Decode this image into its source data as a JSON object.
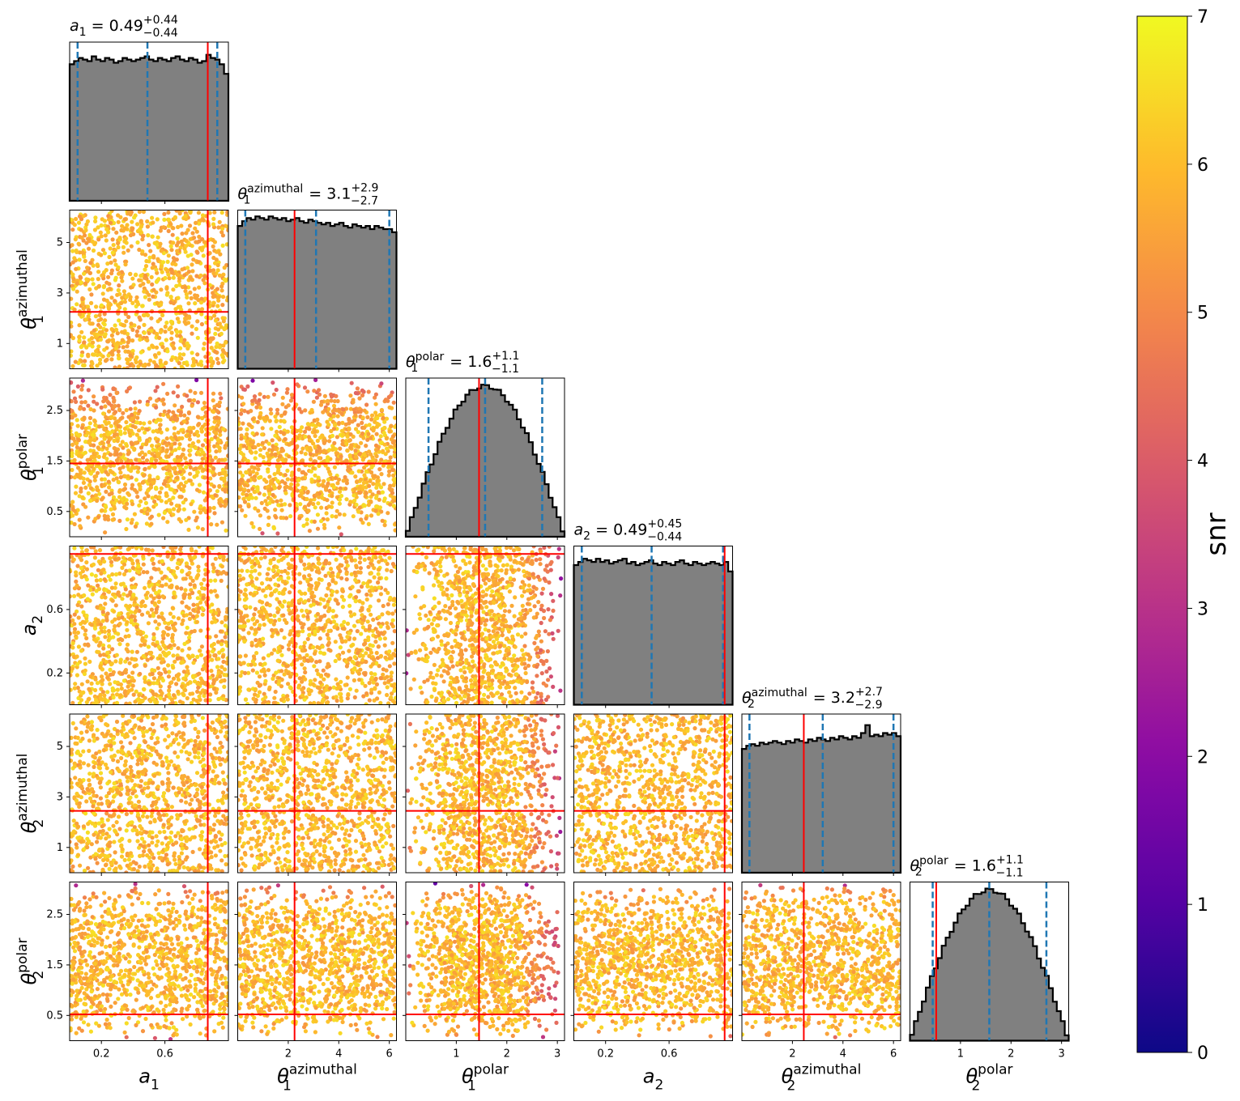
{
  "chart_data": {
    "type": "corner",
    "parameters": [
      {
        "key": "a1",
        "sym": "a",
        "sub": "1",
        "sup": "",
        "range": [
          0,
          1
        ],
        "ticks": [
          0.2,
          0.6
        ],
        "tick_labels": [
          "0.2",
          "0.6"
        ],
        "median": "0.49",
        "plus": "+0.44",
        "minus": "−0.44",
        "q": [
          0.05,
          0.49,
          0.93
        ],
        "truth": 0.87,
        "hist_shape": "flat",
        "hist_rel": [
          0.86,
          0.88,
          0.9,
          0.89,
          0.88,
          0.91,
          0.89,
          0.88,
          0.9,
          0.89,
          0.87,
          0.88,
          0.9,
          0.89,
          0.88,
          0.89,
          0.9,
          0.91,
          0.89,
          0.88,
          0.9,
          0.89,
          0.88,
          0.9,
          0.91,
          0.89,
          0.88,
          0.9,
          0.89,
          0.87,
          0.88,
          0.92,
          0.9,
          0.89,
          0.86,
          0.8
        ]
      },
      {
        "key": "th1az",
        "sym": "θ",
        "sub": "1",
        "sup": "azimuthal",
        "range": [
          0,
          6.283
        ],
        "ticks": [
          1,
          3,
          5
        ],
        "tick_labels": [
          "1",
          "3",
          "5"
        ],
        "xticks": [
          2,
          4,
          6
        ],
        "xtick_labels": [
          "2",
          "4",
          "6"
        ],
        "median": "3.1",
        "plus": "+2.9",
        "minus": "−2.7",
        "q": [
          0.3,
          3.1,
          6.0
        ],
        "truth": 2.25,
        "hist_shape": "flat",
        "hist_rel": [
          0.9,
          0.93,
          0.95,
          0.94,
          0.96,
          0.95,
          0.94,
          0.96,
          0.95,
          0.94,
          0.95,
          0.93,
          0.94,
          0.95,
          0.93,
          0.92,
          0.94,
          0.93,
          0.92,
          0.91,
          0.92,
          0.9,
          0.91,
          0.92,
          0.9,
          0.89,
          0.91,
          0.9,
          0.89,
          0.9,
          0.88,
          0.9,
          0.89,
          0.88,
          0.88,
          0.86
        ]
      },
      {
        "key": "th1pol",
        "sym": "θ",
        "sub": "1",
        "sup": "polar",
        "range": [
          0,
          3.1416
        ],
        "ticks": [
          0.5,
          1.5,
          2.5
        ],
        "tick_labels": [
          "0.5",
          "1.5",
          "2.5"
        ],
        "xticks": [
          1,
          2,
          3
        ],
        "xtick_labels": [
          "1",
          "2",
          "3"
        ],
        "median": "1.6",
        "plus": "+1.1",
        "minus": "−1.1",
        "q": [
          0.45,
          1.57,
          2.7
        ],
        "truth": 1.45,
        "hist_shape": "sine",
        "hist_rel": []
      },
      {
        "key": "a2",
        "sym": "a",
        "sub": "2",
        "sup": "",
        "range": [
          0,
          1
        ],
        "ticks": [
          0.2,
          0.6
        ],
        "tick_labels": [
          "0.2",
          "0.6"
        ],
        "median": "0.49",
        "plus": "+0.45",
        "minus": "−0.44",
        "q": [
          0.05,
          0.49,
          0.94
        ],
        "truth": 0.95,
        "hist_shape": "flat",
        "hist_rel": [
          0.88,
          0.9,
          0.92,
          0.91,
          0.9,
          0.92,
          0.9,
          0.91,
          0.89,
          0.9,
          0.91,
          0.92,
          0.89,
          0.9,
          0.88,
          0.89,
          0.9,
          0.91,
          0.89,
          0.88,
          0.9,
          0.89,
          0.88,
          0.9,
          0.91,
          0.89,
          0.88,
          0.9,
          0.89,
          0.88,
          0.89,
          0.9,
          0.89,
          0.88,
          0.9,
          0.84
        ]
      },
      {
        "key": "th2az",
        "sym": "θ",
        "sub": "2",
        "sup": "azimuthal",
        "range": [
          0,
          6.283
        ],
        "ticks": [
          1,
          3,
          5
        ],
        "tick_labels": [
          "1",
          "3",
          "5"
        ],
        "xticks": [
          2,
          4,
          6
        ],
        "xtick_labels": [
          "2",
          "4",
          "6"
        ],
        "median": "3.2",
        "plus": "+2.7",
        "minus": "−2.9",
        "q": [
          0.3,
          3.2,
          6.0
        ],
        "truth": 2.45,
        "hist_shape": "flat",
        "hist_rel": [
          0.78,
          0.8,
          0.81,
          0.8,
          0.82,
          0.81,
          0.82,
          0.83,
          0.82,
          0.81,
          0.83,
          0.82,
          0.84,
          0.83,
          0.82,
          0.84,
          0.83,
          0.85,
          0.84,
          0.83,
          0.85,
          0.84,
          0.86,
          0.85,
          0.84,
          0.86,
          0.85,
          0.88,
          0.93,
          0.86,
          0.87,
          0.86,
          0.88,
          0.87,
          0.88,
          0.86
        ]
      },
      {
        "key": "th2pol",
        "sym": "θ",
        "sub": "2",
        "sup": "polar",
        "range": [
          0,
          3.1416
        ],
        "ticks": [
          0.5,
          1.5,
          2.5
        ],
        "tick_labels": [
          "0.5",
          "1.5",
          "2.5"
        ],
        "xticks": [
          1,
          2,
          3
        ],
        "xtick_labels": [
          "1",
          "2",
          "3"
        ],
        "median": "1.6",
        "plus": "+1.1",
        "minus": "−1.1",
        "q": [
          0.45,
          1.57,
          2.7
        ],
        "truth": 0.52,
        "hist_shape": "sine",
        "hist_rel": []
      }
    ],
    "colorbar": {
      "label": "snr",
      "range": [
        0,
        7
      ],
      "ticks": [
        0,
        1,
        2,
        3,
        4,
        5,
        6,
        7
      ],
      "colormap": "plasma"
    },
    "colors": {
      "hist_fill": "#808080",
      "hist_edge": "#000000",
      "quantile_line": "#1f77b4",
      "truth_line": "#ff0000"
    }
  }
}
